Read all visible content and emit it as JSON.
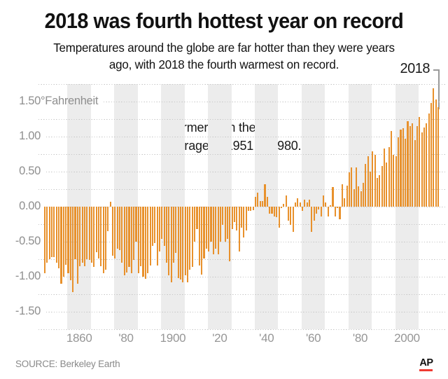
{
  "header": {
    "title": "2018 was fourth hottest year on record",
    "subtitle_line1": "Temperatures around the globe are far hotter than they were years",
    "subtitle_line2": "ago, with 2018 the fourth warmest on record."
  },
  "annotation": {
    "line1": "Warmer than the",
    "line2": "average of 1951 to 1980.",
    "callout_label": "2018"
  },
  "footer": {
    "source": "SOURCE: Berkeley Earth",
    "logo": "AP"
  },
  "colors": {
    "bar": "#E8912C",
    "decade_band": "#ECECEC",
    "grid_dot": "#C4C4C4",
    "axis_text": "#8F8F8F",
    "ap_red": "#EF3B33",
    "pointer_line": "#4A4A4A",
    "bracket_line": "#999999"
  },
  "chart_data": {
    "type": "bar",
    "title": "2018 was fourth hottest year on record",
    "unit": "°Fahrenheit",
    "baseline_note": "Warmer than the average of 1951 to 1980.",
    "start_year": 1850,
    "end_year": 2018,
    "ylim": [
      -1.75,
      1.75
    ],
    "grid_step": 0.25,
    "grid": "dotted",
    "y_ticks": [
      {
        "label": "1.50",
        "suffix": "°Fahrenheit",
        "value": 1.5
      },
      {
        "label": "1.00",
        "suffix": "",
        "value": 1.0
      },
      {
        "label": "0.50",
        "suffix": "",
        "value": 0.5
      },
      {
        "label": "0.00",
        "suffix": "",
        "value": 0.0
      },
      {
        "label": "-0.50",
        "suffix": "",
        "value": -0.5
      },
      {
        "label": "-1.00",
        "suffix": "",
        "value": -1.0
      },
      {
        "label": "-1.50",
        "suffix": "",
        "value": -1.5
      }
    ],
    "x_ticks": [
      {
        "label": "1860",
        "decade": 1860
      },
      {
        "label": "'80",
        "decade": 1880
      },
      {
        "label": "1900",
        "decade": 1900
      },
      {
        "label": "'20",
        "decade": 1920
      },
      {
        "label": "'40",
        "decade": 1940
      },
      {
        "label": "'60",
        "decade": 1960
      },
      {
        "label": "'80",
        "decade": 1980
      },
      {
        "label": "2000",
        "decade": 2000
      }
    ],
    "shaded_decades": [
      1860,
      1880,
      1900,
      1920,
      1940,
      1960,
      1980,
      2000
    ],
    "values": [
      -0.95,
      -0.8,
      -0.75,
      -0.72,
      -0.72,
      -0.8,
      -0.88,
      -1.1,
      -1.0,
      -0.83,
      -0.95,
      -1.05,
      -1.22,
      -0.75,
      -1.1,
      -0.85,
      -0.8,
      -0.85,
      -0.75,
      -0.76,
      -0.8,
      -0.86,
      -0.65,
      -0.74,
      -0.85,
      -0.95,
      -0.9,
      -0.35,
      0.07,
      -0.7,
      -0.74,
      -0.6,
      -0.62,
      -0.8,
      -0.98,
      -0.94,
      -0.86,
      -0.95,
      -0.76,
      -0.5,
      -0.95,
      -0.85,
      -1.0,
      -1.03,
      -0.95,
      -0.84,
      -0.56,
      -0.52,
      -0.84,
      -0.64,
      -0.46,
      -0.56,
      -0.8,
      -0.98,
      -1.08,
      -0.8,
      -0.66,
      -1.02,
      -1.04,
      -1.08,
      -0.98,
      -1.08,
      -0.9,
      -0.86,
      -0.5,
      -0.32,
      -0.84,
      -0.97,
      -0.74,
      -0.6,
      -0.64,
      -0.5,
      -0.68,
      -0.6,
      -0.68,
      -0.5,
      -0.26,
      -0.5,
      -0.46,
      -0.78,
      -0.32,
      -0.22,
      -0.34,
      -0.64,
      -0.3,
      -0.44,
      -0.34,
      -0.06,
      -0.06,
      -0.05,
      0.14,
      0.2,
      0.08,
      0.08,
      0.32,
      0.14,
      -0.1,
      -0.1,
      -0.14,
      -0.15,
      -0.3,
      -0.02,
      0.04,
      0.16,
      -0.2,
      -0.26,
      -0.36,
      0.06,
      0.12,
      0.06,
      -0.06,
      0.1,
      0.06,
      0.1,
      -0.36,
      -0.2,
      -0.1,
      -0.04,
      -0.14,
      0.16,
      0.06,
      -0.14,
      0.02,
      0.28,
      -0.14,
      -0.02,
      -0.18,
      0.32,
      0.12,
      0.3,
      0.49,
      0.56,
      0.25,
      0.56,
      0.29,
      0.22,
      0.34,
      0.61,
      0.72,
      0.5,
      0.79,
      0.74,
      0.41,
      0.45,
      0.58,
      0.83,
      0.63,
      0.85,
      1.08,
      0.74,
      0.72,
      0.99,
      1.1,
      1.12,
      0.97,
      1.22,
      1.15,
      1.19,
      0.95,
      1.15,
      1.28,
      1.06,
      1.13,
      1.19,
      1.33,
      1.48,
      1.69,
      1.53,
      1.42
    ]
  }
}
